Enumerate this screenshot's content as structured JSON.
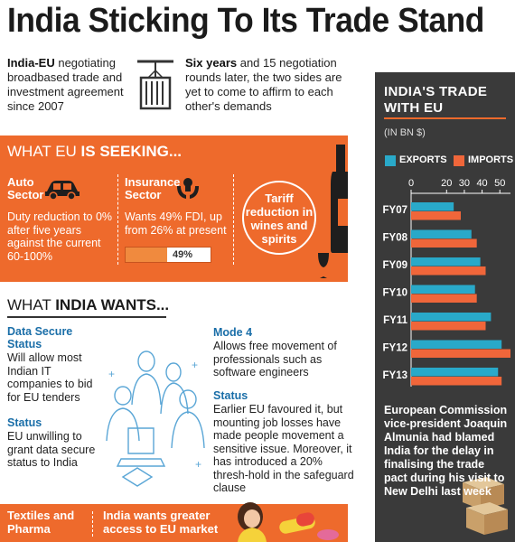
{
  "title": "India Sticking To Its Trade Stand",
  "intro_left": {
    "bold": "India-EU",
    "rest": " negotiating broadbased trade and investment agreement since 2007"
  },
  "intro_right": {
    "bold": "Six years",
    "rest": " and 15 negotiation rounds later, the two sides are yet to come to affirm to each other's demands"
  },
  "eu_seeking": {
    "heading_light": "WHAT EU ",
    "heading_bold": "IS SEEKING...",
    "auto": {
      "label": "Auto Sector",
      "text": "Duty reduction to 0% after five years against the current 60-100%"
    },
    "insurance": {
      "label": "Insurance Sector",
      "text": "Wants 49% FDI, up from 26% at present",
      "progress_label": "49%",
      "progress_value": 49
    },
    "tariff": "Tariff reduction in wines and spirits"
  },
  "india_wants": {
    "heading_light": "WHAT ",
    "heading_bold": "INDIA WANTS...",
    "data_secure": {
      "heading": "Data Secure Status",
      "text": "Will allow most Indian IT companies to bid for EU tenders"
    },
    "status1": {
      "heading": "Status",
      "text": "EU unwilling to grant data secure status to India"
    },
    "mode4": {
      "heading": "Mode 4",
      "text": "Allows free movement of professionals such as software engineers"
    },
    "status2": {
      "heading": "Status",
      "text": "Earlier EU favoured it, but mounting job losses have made people movement a sensitive issue. Moreover, it has introduced a 20% thresh-hold in the safeguard clause"
    }
  },
  "bottom": {
    "label": "Textiles and Pharma",
    "text": "India wants greater access to EU market"
  },
  "caption": "European Commission vice-president Joaquin Almunia had blamed India for the delay in finalising the trade pact during his visit to New Delhi last week",
  "colors": {
    "orange": "#ee6a2c",
    "exports": "#29a9c9",
    "imports": "#f0663a",
    "panel": "#3a3a3a",
    "blue_heading": "#1a6ea8"
  },
  "chart_data": {
    "type": "bar",
    "orientation": "horizontal",
    "title": "INDIA'S TRADE WITH EU",
    "unit": "(IN BN $)",
    "categories": [
      "FY07",
      "FY08",
      "FY09",
      "FY10",
      "FY11",
      "FY12",
      "FY13"
    ],
    "series": [
      {
        "name": "EXPORTS",
        "values": [
          24,
          34,
          39,
          36,
          45,
          51,
          49
        ]
      },
      {
        "name": "IMPORTS",
        "values": [
          28,
          37,
          42,
          37,
          42,
          56,
          51
        ]
      }
    ],
    "x_ticks": [
      0,
      20,
      30,
      40,
      50
    ],
    "xlim": [
      0,
      56
    ],
    "legend_position": "top",
    "grid": false
  }
}
